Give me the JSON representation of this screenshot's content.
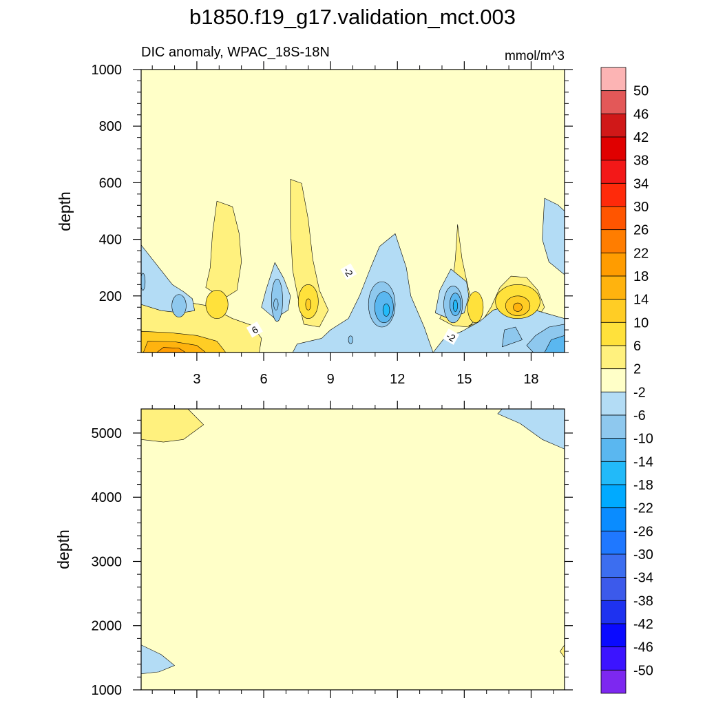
{
  "chart_data": [
    {
      "type": "contour",
      "panel": "upper",
      "title": "b1850.f19_g17.validation_mct.003",
      "subtitle_left": "DIC anomaly, WPAC_18S-18N",
      "subtitle_right": "mmol/m^3",
      "xlabel": "",
      "ylabel": "depth",
      "xlim": [
        0.5,
        19.5
      ],
      "ylim": [
        1000,
        0
      ],
      "x_ticks": [
        3,
        6,
        9,
        12,
        15,
        18
      ],
      "x_tick_labels": [
        "3",
        "6",
        "9",
        "12",
        "15",
        "18"
      ],
      "y_ticks": [
        200,
        400,
        600,
        800,
        1000
      ],
      "y_tick_labels": [
        "200",
        "400",
        "600",
        "800",
        "1000"
      ],
      "contour_labels": [
        {
          "text": "6",
          "x": 5.6,
          "depth": 80,
          "rotate": -30
        },
        {
          "text": "-2",
          "x": 14.4,
          "depth": 55,
          "rotate": 30
        },
        {
          "text": "-2",
          "x": 9.8,
          "depth": 285,
          "rotate": 60
        }
      ],
      "features": [
        {
          "shape": "poly",
          "class": "-2..2",
          "pts": [
            [
              0.5,
              0
            ],
            [
              19.5,
              0
            ],
            [
              19.5,
              1000
            ],
            [
              0.5,
              1000
            ]
          ]
        },
        {
          "shape": "poly",
          "class": "2..6",
          "pts": [
            [
              3.4,
              230
            ],
            [
              3.6,
              300
            ],
            [
              3.7,
              420
            ],
            [
              3.9,
              535
            ],
            [
              4.6,
              515
            ],
            [
              4.9,
              420
            ],
            [
              5.0,
              320
            ],
            [
              4.8,
              220
            ],
            [
              4.2,
              190
            ]
          ]
        },
        {
          "shape": "poly",
          "class": "2..6",
          "pts": [
            [
              7.6,
              170
            ],
            [
              7.3,
              290
            ],
            [
              7.2,
              440
            ],
            [
              7.2,
              612
            ],
            [
              7.7,
              598
            ],
            [
              8.0,
              470
            ],
            [
              8.2,
              330
            ],
            [
              8.5,
              220
            ],
            [
              8.9,
              150
            ],
            [
              8.5,
              90
            ],
            [
              7.8,
              100
            ]
          ]
        },
        {
          "shape": "poly",
          "class": "2..6",
          "pts": [
            [
              13.9,
              120
            ],
            [
              14.4,
              200
            ],
            [
              14.6,
              330
            ],
            [
              14.7,
              452
            ],
            [
              14.9,
              330
            ],
            [
              15.2,
              220
            ],
            [
              15.6,
              125
            ],
            [
              15.2,
              90
            ],
            [
              14.5,
              95
            ]
          ]
        },
        {
          "shape": "poly",
          "class": "2..6",
          "pts": [
            [
              15.2,
              95
            ],
            [
              15.8,
              110
            ],
            [
              16.2,
              160
            ],
            [
              16.6,
              230
            ],
            [
              17.1,
              270
            ],
            [
              17.8,
              265
            ],
            [
              18.3,
              220
            ],
            [
              18.6,
              160
            ],
            [
              18.2,
              110
            ],
            [
              17.6,
              95
            ],
            [
              16.6,
              90
            ]
          ]
        },
        {
          "shape": "poly",
          "class": "2..6",
          "pts": [
            [
              0.5,
              0
            ],
            [
              5.8,
              0
            ],
            [
              5.9,
              50
            ],
            [
              5.5,
              95
            ],
            [
              4.6,
              120
            ],
            [
              3.5,
              165
            ],
            [
              2.4,
              180
            ],
            [
              1.2,
              185
            ],
            [
              0.5,
              195
            ]
          ]
        },
        {
          "shape": "poly",
          "class": "-6..-2",
          "pts": [
            [
              0.5,
              170
            ],
            [
              1.4,
              148
            ],
            [
              2.3,
              140
            ],
            [
              2.9,
              148
            ],
            [
              2.8,
              190
            ],
            [
              2.4,
              215
            ],
            [
              1.9,
              240
            ],
            [
              1.3,
              300
            ],
            [
              0.5,
              380
            ]
          ]
        },
        {
          "shape": "poly",
          "class": "-6..-2",
          "pts": [
            [
              5.9,
              160
            ],
            [
              6.1,
              220
            ],
            [
              6.5,
              318
            ],
            [
              6.9,
              262
            ],
            [
              7.2,
              200
            ],
            [
              7.1,
              150
            ],
            [
              6.5,
              120
            ]
          ]
        },
        {
          "shape": "poly",
          "class": "-6..-2",
          "pts": [
            [
              7.3,
              0
            ],
            [
              13.6,
              0
            ],
            [
              13.2,
              90
            ],
            [
              12.6,
              200
            ],
            [
              12.4,
              300
            ],
            [
              11.9,
              420
            ],
            [
              11.2,
              375
            ],
            [
              10.8,
              300
            ],
            [
              10.3,
              200
            ],
            [
              9.8,
              120
            ],
            [
              9.0,
              80
            ],
            [
              8.6,
              50
            ],
            [
              7.5,
              30
            ]
          ]
        },
        {
          "shape": "poly",
          "class": "-6..-2",
          "pts": [
            [
              13.7,
              140
            ],
            [
              13.9,
              220
            ],
            [
              14.4,
              295
            ],
            [
              15.1,
              250
            ],
            [
              15.2,
              200
            ],
            [
              15.0,
              140
            ],
            [
              14.3,
              120
            ]
          ]
        },
        {
          "shape": "poly",
          "class": "-6..-2",
          "pts": [
            [
              13.6,
              0
            ],
            [
              19.5,
              0
            ],
            [
              19.5,
              120
            ],
            [
              18.6,
              140
            ],
            [
              17.3,
              170
            ],
            [
              16.3,
              150
            ],
            [
              15.7,
              110
            ],
            [
              14.9,
              75
            ],
            [
              14.1,
              50
            ]
          ]
        },
        {
          "shape": "poly",
          "class": "-6..-2",
          "pts": [
            [
              19.5,
              275
            ],
            [
              18.8,
              320
            ],
            [
              18.5,
              400
            ],
            [
              18.6,
              545
            ],
            [
              19.2,
              522
            ],
            [
              19.5,
              500
            ]
          ]
        },
        {
          "shape": "poly",
          "class": "-10..-6",
          "pts": [
            [
              18.1,
              0
            ],
            [
              19.5,
              0
            ],
            [
              19.5,
              100
            ],
            [
              18.8,
              90
            ],
            [
              18.2,
              60
            ],
            [
              17.8,
              25
            ]
          ]
        },
        {
          "shape": "poly",
          "class": "-10..-6",
          "pts": [
            [
              16.7,
              20
            ],
            [
              17.6,
              45
            ],
            [
              17.3,
              90
            ],
            [
              16.8,
              80
            ]
          ]
        },
        {
          "shape": "poly",
          "class": "-14..-10",
          "pts": [
            [
              18.6,
              0
            ],
            [
              19.5,
              0
            ],
            [
              19.5,
              60
            ],
            [
              18.9,
              45
            ]
          ]
        },
        {
          "shape": "ell",
          "class": "-6..-10",
          "cx": 2.2,
          "cy": 165,
          "rx": 0.32,
          "ry": 40
        },
        {
          "shape": "ell",
          "class": "-6..-10",
          "cx": 0.58,
          "cy": 250,
          "rx": 0.1,
          "ry": 30
        },
        {
          "shape": "ell",
          "class": "-6..-10",
          "cx": 6.6,
          "cy": 185,
          "rx": 0.25,
          "ry": 75
        },
        {
          "shape": "ell",
          "class": "-6..-10",
          "cx": 6.55,
          "cy": 170,
          "rx": 0.1,
          "ry": 20
        },
        {
          "shape": "ell",
          "class": "-6..-10",
          "cx": 9.9,
          "cy": 45,
          "rx": 0.1,
          "ry": 14
        },
        {
          "shape": "ell",
          "class": "-6..-10",
          "cx": 11.3,
          "cy": 170,
          "rx": 0.6,
          "ry": 80
        },
        {
          "shape": "ell",
          "class": "-10..-14",
          "cx": 11.4,
          "cy": 160,
          "rx": 0.42,
          "ry": 55
        },
        {
          "shape": "ell",
          "class": "-14..-18",
          "cx": 11.5,
          "cy": 150,
          "rx": 0.15,
          "ry": 22
        },
        {
          "shape": "ell",
          "class": "-6..-10",
          "cx": 14.5,
          "cy": 170,
          "rx": 0.42,
          "ry": 65
        },
        {
          "shape": "ell",
          "class": "-10..-14",
          "cx": 14.6,
          "cy": 170,
          "rx": 0.25,
          "ry": 40
        },
        {
          "shape": "ell",
          "class": "-14..-18",
          "cx": 14.6,
          "cy": 165,
          "rx": 0.1,
          "ry": 20
        },
        {
          "shape": "ell",
          "class": "6..10",
          "cx": 3.9,
          "cy": 170,
          "rx": 0.5,
          "ry": 50
        },
        {
          "shape": "ell",
          "class": "6..10",
          "cx": 8.0,
          "cy": 180,
          "rx": 0.45,
          "ry": 60
        },
        {
          "shape": "ell",
          "class": "10..14",
          "cx": 8.0,
          "cy": 170,
          "rx": 0.12,
          "ry": 20
        },
        {
          "shape": "ell",
          "class": "6..10",
          "cx": 15.5,
          "cy": 160,
          "rx": 0.35,
          "ry": 55
        },
        {
          "shape": "ell",
          "class": "6..10",
          "cx": 17.4,
          "cy": 180,
          "rx": 1.0,
          "ry": 60
        },
        {
          "shape": "ell",
          "class": "10..14",
          "cx": 17.4,
          "cy": 165,
          "rx": 0.55,
          "ry": 35
        },
        {
          "shape": "ell",
          "class": "14..18",
          "cx": 17.4,
          "cy": 160,
          "rx": 0.2,
          "ry": 15
        },
        {
          "shape": "poly",
          "class": "10..14",
          "pts": [
            [
              0.5,
              0
            ],
            [
              4.3,
              0
            ],
            [
              3.9,
              40
            ],
            [
              3.0,
              60
            ],
            [
              1.8,
              70
            ],
            [
              0.5,
              75
            ]
          ]
        },
        {
          "shape": "poly",
          "class": "14..18",
          "pts": [
            [
              0.6,
              0
            ],
            [
              3.4,
              0
            ],
            [
              3.0,
              25
            ],
            [
              2.0,
              38
            ],
            [
              0.8,
              40
            ]
          ]
        },
        {
          "shape": "poly",
          "class": "18..22",
          "pts": [
            [
              1.2,
              0
            ],
            [
              2.5,
              0
            ],
            [
              2.2,
              15
            ],
            [
              1.5,
              18
            ]
          ]
        }
      ]
    },
    {
      "type": "contour",
      "panel": "lower",
      "xlabel": "",
      "ylabel": "depth",
      "xlim": [
        0.5,
        19.5
      ],
      "ylim": [
        5375,
        1000
      ],
      "x_ticks": [
        3,
        6,
        9,
        12,
        15,
        18
      ],
      "y_ticks": [
        1000,
        2000,
        3000,
        4000,
        5000
      ],
      "y_tick_labels": [
        "1000",
        "2000",
        "3000",
        "4000",
        "5000"
      ],
      "features": [
        {
          "shape": "poly",
          "class": "-2..2",
          "pts": [
            [
              0.5,
              1000
            ],
            [
              19.5,
              1000
            ],
            [
              19.5,
              5375
            ],
            [
              0.5,
              5375
            ]
          ]
        },
        {
          "shape": "poly",
          "class": "-6..-2",
          "pts": [
            [
              0.5,
              1250
            ],
            [
              1.3,
              1280
            ],
            [
              2.0,
              1380
            ],
            [
              1.4,
              1550
            ],
            [
              0.5,
              1700
            ]
          ]
        },
        {
          "shape": "poly",
          "class": "2..6",
          "pts": [
            [
              19.5,
              1500
            ],
            [
              19.3,
              1600
            ],
            [
              19.5,
              1700
            ]
          ]
        },
        {
          "shape": "poly",
          "class": "2..6",
          "pts": [
            [
              0.5,
              4900
            ],
            [
              1.5,
              4860
            ],
            [
              2.4,
              4900
            ],
            [
              3.3,
              5130
            ],
            [
              2.6,
              5375
            ],
            [
              0.5,
              5375
            ]
          ]
        },
        {
          "shape": "poly",
          "class": "-6..-2",
          "pts": [
            [
              19.5,
              4750
            ],
            [
              18.5,
              4900
            ],
            [
              17.5,
              5150
            ],
            [
              16.5,
              5300
            ],
            [
              16.7,
              5375
            ],
            [
              19.5,
              5375
            ]
          ]
        }
      ]
    }
  ],
  "colorbar": {
    "labels": [
      "50",
      "46",
      "42",
      "38",
      "34",
      "30",
      "26",
      "22",
      "18",
      "14",
      "10",
      "6",
      "2",
      "-2",
      "-6",
      "-10",
      "-14",
      "-18",
      "-22",
      "-26",
      "-30",
      "-34",
      "-38",
      "-42",
      "-46",
      "-50"
    ],
    "colors": [
      "#fcb4b4",
      "#e35858",
      "#d01818",
      "#e00000",
      "#f31818",
      "#ff2a0a",
      "#ff5500",
      "#ff7d00",
      "#ff9c00",
      "#ffb30e",
      "#ffcd25",
      "#ffe13b",
      "#fff17e",
      "#ffffc8",
      "#b3dcf5",
      "#8ec8ee",
      "#5ab7f0",
      "#22baf9",
      "#00aaff",
      "#0a8cff",
      "#1f78ff",
      "#3c6ef0",
      "#3c5aeb",
      "#1e32f0",
      "#0a0aff",
      "#3c14ff",
      "#7d28f0"
    ]
  },
  "level_colors": {
    "-2..2": "#ffffc8",
    "2..6": "#fff17e",
    "6..10": "#ffe13b",
    "10..14": "#ffcd25",
    "14..18": "#ffb30e",
    "18..22": "#ff9c00",
    "-6..-2": "#b3dcf5",
    "-6..-10": "#8ec8ee",
    "-10..-6": "#8ec8ee",
    "-10..-14": "#5ab7f0",
    "-14..-10": "#5ab7f0",
    "-14..-18": "#22baf9"
  }
}
